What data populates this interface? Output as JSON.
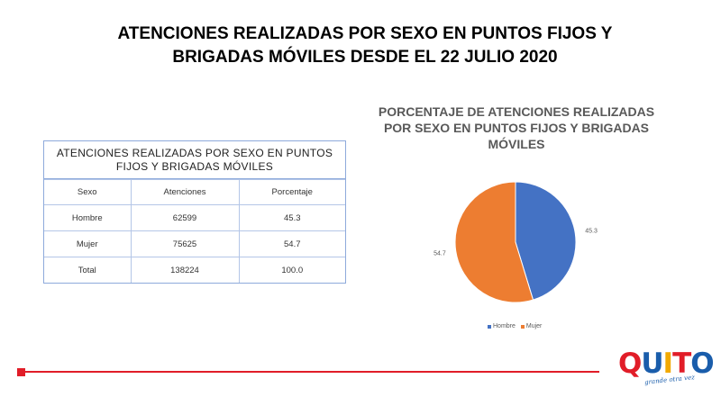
{
  "slide": {
    "title_line1": "ATENCIONES REALIZADAS POR SEXO EN PUNTOS FIJOS Y",
    "title_line2": "BRIGADAS MÓVILES DESDE EL 22 JULIO 2020"
  },
  "table": {
    "caption": "ATENCIONES REALIZADAS POR SEXO EN PUNTOS FIJOS Y BRIGADAS MÓVILES",
    "headers": [
      "Sexo",
      "Atenciones",
      "Porcentaje"
    ],
    "rows": [
      [
        "Hombre",
        "62599",
        "45.3"
      ],
      [
        "Mujer",
        "75625",
        "54.7"
      ],
      [
        "Total",
        "138224",
        "100.0"
      ]
    ]
  },
  "chart_data": {
    "type": "pie",
    "title": "PORCENTAJE DE ATENCIONES REALIZADAS POR SEXO EN PUNTOS FIJOS Y BRIGADAS MÓVILES",
    "title_lines": [
      "PORCENTAJE DE ATENCIONES REALIZADAS",
      "POR SEXO EN PUNTOS FIJOS Y BRIGADAS",
      "MÓVILES"
    ],
    "labels": [
      "Hombre",
      "Mujer"
    ],
    "values": [
      45.3,
      54.7
    ],
    "data_labels": [
      "45.3",
      "54.7"
    ],
    "colors": [
      "#4472c4",
      "#ed7d31"
    ],
    "legend_position": "bottom"
  },
  "logo": {
    "letters": [
      "Q",
      "U",
      "I",
      "T",
      "O"
    ],
    "letter_colors": [
      "#e11d28",
      "#1a5dab",
      "#f2a900",
      "#e11d28",
      "#1a5dab"
    ],
    "tagline": "grande otra vez"
  },
  "colors": {
    "accent_red": "#e11d28",
    "table_border": "#8eaadb"
  }
}
